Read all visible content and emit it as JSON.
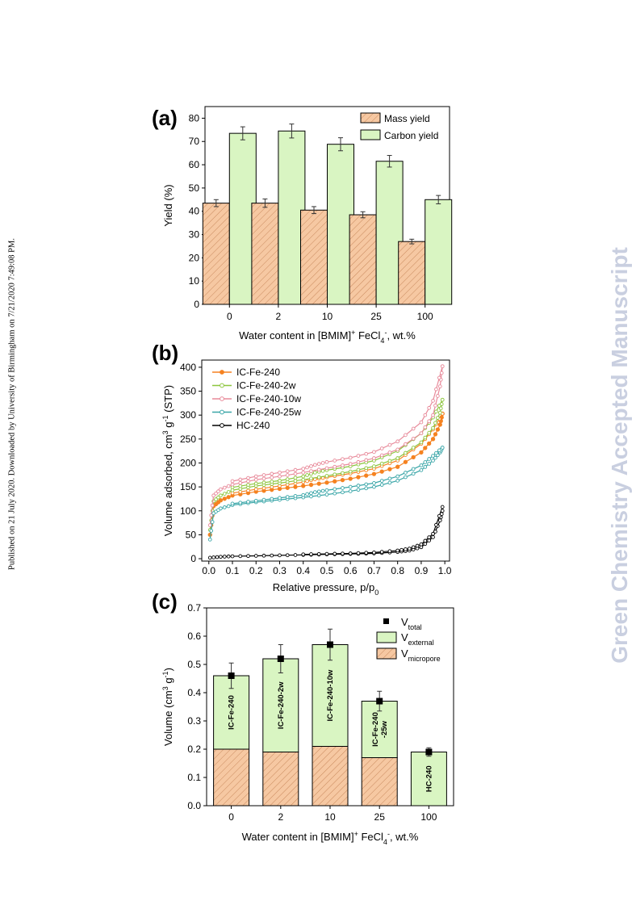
{
  "side_note": "Published on 21 July 2020. Downloaded by University of Birmingham on 7/21/2020 7:49:08 PM.",
  "watermark": "Green Chemistry Accepted Manuscript",
  "colors": {
    "mass": "#f6c8a2",
    "carbon": "#d9f5c2",
    "IC-Fe-240": "#f58220",
    "IC-Fe-240-2w": "#8dc63f",
    "IC-Fe-240-10w": "#e88a9a",
    "IC-Fe-240-25w": "#3aa6a8",
    "HC-240": "#000000"
  },
  "chart_data": [
    {
      "panel": "(a)",
      "type": "bar",
      "categories": [
        "0",
        "2",
        "10",
        "25",
        "100"
      ],
      "series": [
        {
          "name": "Mass yield",
          "values": [
            43.5,
            43.5,
            40.5,
            38.5,
            27.0
          ],
          "errors": [
            1.5,
            1.8,
            1.5,
            1.3,
            1.0
          ]
        },
        {
          "name": "Carbon yield",
          "values": [
            73.5,
            74.5,
            68.8,
            61.5,
            45.0
          ],
          "errors": [
            2.8,
            3.0,
            2.8,
            2.5,
            1.8
          ]
        }
      ],
      "xlabel": "Water content in [BMIM]",
      "xlabel_sup1": "+",
      "xlabel_mid": " FeCl",
      "xlabel_sub": "4",
      "xlabel_sup2": "-",
      "xlabel_end": ", wt.%",
      "ylabel": "Yield (%)",
      "ylim": [
        0,
        85
      ],
      "yticks": [
        0,
        10,
        20,
        30,
        40,
        50,
        60,
        70,
        80
      ],
      "legend": "top-right"
    },
    {
      "panel": "(b)",
      "type": "line",
      "xlabel": "Relative pressure, p/p",
      "xlabel_sub": "0",
      "ylabel": "Volume adsorbed, cm",
      "ylabel_sup1": "3",
      "ylabel_mid": " g",
      "ylabel_sup2": "-1",
      "ylabel_end": " (STP)",
      "xlim": [
        -0.03,
        1.02
      ],
      "ylim": [
        -5,
        415
      ],
      "xticks": [
        0.0,
        0.1,
        0.2,
        0.3,
        0.4,
        0.5,
        0.6,
        0.7,
        0.8,
        0.9,
        1.0
      ],
      "yticks": [
        0,
        50,
        100,
        150,
        200,
        250,
        300,
        350,
        400
      ],
      "legend": "top-left",
      "series": [
        {
          "name": "IC-Fe-240",
          "ads": [
            [
              0.005,
              50
            ],
            [
              0.02,
              110
            ],
            [
              0.05,
              122
            ],
            [
              0.1,
              132
            ],
            [
              0.2,
              140
            ],
            [
              0.3,
              146
            ],
            [
              0.4,
              152
            ],
            [
              0.5,
              159
            ],
            [
              0.6,
              167
            ],
            [
              0.7,
              177
            ],
            [
              0.8,
              192
            ],
            [
              0.9,
              222
            ],
            [
              0.95,
              250
            ],
            [
              0.98,
              280
            ],
            [
              0.99,
              303
            ]
          ],
          "des": [
            [
              0.99,
              303
            ],
            [
              0.95,
              270
            ],
            [
              0.9,
              240
            ],
            [
              0.8,
              205
            ],
            [
              0.7,
              188
            ],
            [
              0.6,
              178
            ],
            [
              0.5,
              170
            ],
            [
              0.45,
              166
            ],
            [
              0.4,
              160
            ],
            [
              0.3,
              152
            ],
            [
              0.2,
              145
            ],
            [
              0.1,
              137
            ]
          ]
        },
        {
          "name": "IC-Fe-240-2w",
          "ads": [
            [
              0.005,
              60
            ],
            [
              0.02,
              120
            ],
            [
              0.05,
              132
            ],
            [
              0.1,
              143
            ],
            [
              0.2,
              152
            ],
            [
              0.3,
              158
            ],
            [
              0.4,
              165
            ],
            [
              0.5,
              173
            ],
            [
              0.6,
              182
            ],
            [
              0.7,
              193
            ],
            [
              0.8,
              210
            ],
            [
              0.9,
              243
            ],
            [
              0.95,
              273
            ],
            [
              0.98,
              305
            ],
            [
              0.99,
              332
            ]
          ],
          "des": [
            [
              0.99,
              332
            ],
            [
              0.95,
              295
            ],
            [
              0.9,
              262
            ],
            [
              0.8,
              225
            ],
            [
              0.7,
              205
            ],
            [
              0.6,
              193
            ],
            [
              0.5,
              185
            ],
            [
              0.45,
              180
            ],
            [
              0.4,
              172
            ],
            [
              0.3,
              163
            ],
            [
              0.2,
              157
            ],
            [
              0.1,
              149
            ]
          ]
        },
        {
          "name": "IC-Fe-240-10w",
          "ads": [
            [
              0.005,
              70
            ],
            [
              0.02,
              132
            ],
            [
              0.05,
              145
            ],
            [
              0.1,
              155
            ],
            [
              0.2,
              165
            ],
            [
              0.3,
              172
            ],
            [
              0.4,
              180
            ],
            [
              0.5,
              189
            ],
            [
              0.6,
              198
            ],
            [
              0.7,
              210
            ],
            [
              0.8,
              228
            ],
            [
              0.9,
              262
            ],
            [
              0.95,
              300
            ],
            [
              0.98,
              360
            ],
            [
              0.99,
              402
            ]
          ],
          "des": [
            [
              0.99,
              402
            ],
            [
              0.95,
              330
            ],
            [
              0.9,
              285
            ],
            [
              0.8,
              245
            ],
            [
              0.7,
              223
            ],
            [
              0.6,
              211
            ],
            [
              0.5,
              202
            ],
            [
              0.45,
              196
            ],
            [
              0.4,
              188
            ],
            [
              0.3,
              180
            ],
            [
              0.2,
              172
            ],
            [
              0.1,
              162
            ]
          ]
        },
        {
          "name": "IC-Fe-240-25w",
          "ads": [
            [
              0.005,
              40
            ],
            [
              0.02,
              95
            ],
            [
              0.05,
              105
            ],
            [
              0.1,
              112
            ],
            [
              0.2,
              118
            ],
            [
              0.3,
              123
            ],
            [
              0.4,
              128
            ],
            [
              0.5,
              134
            ],
            [
              0.6,
              141
            ],
            [
              0.7,
              150
            ],
            [
              0.8,
              163
            ],
            [
              0.9,
              185
            ],
            [
              0.95,
              205
            ],
            [
              0.98,
              222
            ],
            [
              0.99,
              232
            ]
          ],
          "des": [
            [
              0.99,
              232
            ],
            [
              0.95,
              215
            ],
            [
              0.9,
              195
            ],
            [
              0.8,
              172
            ],
            [
              0.7,
              158
            ],
            [
              0.6,
              150
            ],
            [
              0.5,
              143
            ],
            [
              0.45,
              139
            ],
            [
              0.4,
              133
            ],
            [
              0.3,
              127
            ],
            [
              0.2,
              121
            ],
            [
              0.1,
              115
            ]
          ]
        },
        {
          "name": "HC-240",
          "ads": [
            [
              0.005,
              2
            ],
            [
              0.05,
              4
            ],
            [
              0.1,
              5
            ],
            [
              0.2,
              6
            ],
            [
              0.3,
              7
            ],
            [
              0.4,
              8
            ],
            [
              0.5,
              9
            ],
            [
              0.6,
              10
            ],
            [
              0.7,
              11
            ],
            [
              0.8,
              14
            ],
            [
              0.85,
              17
            ],
            [
              0.9,
              24
            ],
            [
              0.95,
              45
            ],
            [
              0.98,
              80
            ],
            [
              0.99,
              100
            ]
          ],
          "des": [
            [
              0.99,
              108
            ],
            [
              0.95,
              52
            ],
            [
              0.9,
              30
            ],
            [
              0.85,
              21
            ],
            [
              0.8,
              17
            ],
            [
              0.7,
              13
            ],
            [
              0.6,
              11
            ],
            [
              0.5,
              10
            ],
            [
              0.4,
              9
            ]
          ]
        }
      ]
    },
    {
      "panel": "(c)",
      "type": "bar",
      "stacked": true,
      "categories": [
        "0",
        "2",
        "10",
        "25",
        "100"
      ],
      "bar_labels": [
        "IC-Fe-240",
        "IC-Fe-240-2w",
        "IC-Fe-240-10w",
        "IC-Fe-240\n-25w",
        "HC-240"
      ],
      "series": [
        {
          "name": "V",
          "name_sub": "micropore",
          "values": [
            0.2,
            0.19,
            0.21,
            0.17,
            0.0
          ]
        },
        {
          "name": "V",
          "name_sub": "external",
          "values": [
            0.26,
            0.33,
            0.36,
            0.2,
            0.19
          ]
        }
      ],
      "v_total": {
        "name": "V",
        "name_sub": "total",
        "values": [
          0.46,
          0.52,
          0.57,
          0.37,
          0.19
        ],
        "errors": [
          0.045,
          0.05,
          0.055,
          0.035,
          0.015
        ]
      },
      "xlabel": "Water content in [BMIM]",
      "xlabel_sup1": "+",
      "xlabel_mid": " FeCl",
      "xlabel_sub": "4",
      "xlabel_sup2": "-",
      "xlabel_end": ", wt.%",
      "ylabel": "Volume (cm",
      "ylabel_sup1": "3",
      "ylabel_mid": " g",
      "ylabel_sup2": "-1",
      "ylabel_end": ")",
      "ylim": [
        0,
        0.7
      ],
      "yticks": [
        0.0,
        0.1,
        0.2,
        0.3,
        0.4,
        0.5,
        0.6,
        0.7
      ],
      "legend": "top-right"
    }
  ]
}
